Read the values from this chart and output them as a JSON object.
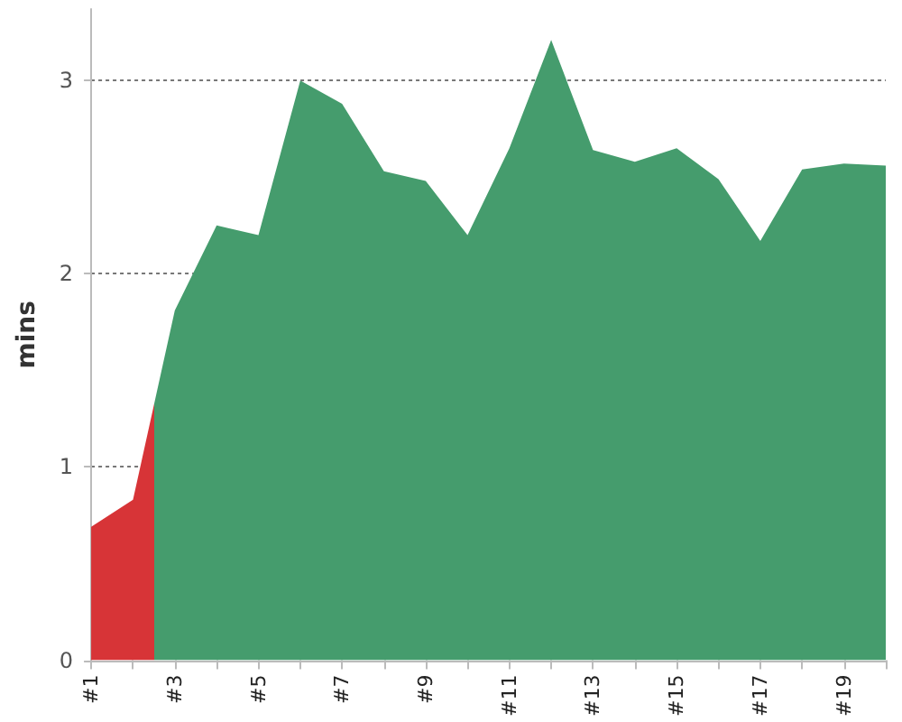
{
  "chart_data": {
    "type": "area",
    "ylabel": "mins",
    "categories": [
      "#1",
      null,
      "#3",
      null,
      "#5",
      null,
      "#7",
      null,
      "#9",
      null,
      "#11",
      null,
      "#13",
      null,
      "#15",
      null,
      "#17",
      null,
      "#19",
      null
    ],
    "values": [
      0.69,
      0.83,
      1.81,
      2.25,
      2.2,
      3.0,
      2.88,
      2.53,
      2.48,
      2.2,
      2.65,
      3.21,
      2.64,
      2.58,
      2.65,
      2.49,
      2.17,
      2.54,
      2.57,
      2.56
    ],
    "colors": [
      "#d73437",
      "#d73437",
      "#459c6d",
      "#459c6d",
      "#459c6d",
      "#459c6d",
      "#459c6d",
      "#459c6d",
      "#459c6d",
      "#459c6d",
      "#459c6d",
      "#459c6d",
      "#459c6d",
      "#459c6d",
      "#459c6d",
      "#459c6d",
      "#459c6d",
      "#459c6d",
      "#459c6d",
      "#459c6d"
    ],
    "ylim": [
      0,
      3.37
    ],
    "yticks": [
      0,
      1,
      2,
      3
    ],
    "grid": "y"
  }
}
